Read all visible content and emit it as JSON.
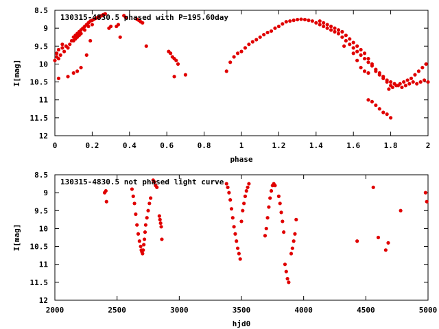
{
  "chart_data": [
    {
      "type": "scatter",
      "title": "130315-4830.5 phased with P=195.60day",
      "xlabel": "phase",
      "ylabel": "I[mag]",
      "xlim": [
        0,
        2
      ],
      "ylim": [
        8.5,
        12
      ],
      "y_inverted": true,
      "xticks": [
        "0",
        "0.2",
        "0.4",
        "0.6",
        "0.8",
        "1",
        "1.2",
        "1.4",
        "1.6",
        "1.8",
        "2"
      ],
      "yticks": [
        "8.5",
        "9",
        "9.5",
        "10",
        "10.5",
        "11",
        "11.5",
        "12"
      ],
      "color": "#e00000",
      "points": [
        [
          0.0,
          9.9
        ],
        [
          0.01,
          9.8
        ],
        [
          0.01,
          9.7
        ],
        [
          0.02,
          9.6
        ],
        [
          0.02,
          9.85
        ],
        [
          0.03,
          9.75
        ],
        [
          0.04,
          9.55
        ],
        [
          0.04,
          9.45
        ],
        [
          0.05,
          9.65
        ],
        [
          0.06,
          9.5
        ],
        [
          0.07,
          9.55
        ],
        [
          0.08,
          9.45
        ],
        [
          0.09,
          9.35
        ],
        [
          0.1,
          9.25
        ],
        [
          0.11,
          9.2
        ],
        [
          0.12,
          9.15
        ],
        [
          0.13,
          9.1
        ],
        [
          0.14,
          9.05
        ],
        [
          0.15,
          9.0
        ],
        [
          0.16,
          8.95
        ],
        [
          0.17,
          8.9
        ],
        [
          0.18,
          8.85
        ],
        [
          0.19,
          8.8
        ],
        [
          0.2,
          8.78
        ],
        [
          0.21,
          8.75
        ],
        [
          0.22,
          8.72
        ],
        [
          0.23,
          8.7
        ],
        [
          0.24,
          8.68
        ],
        [
          0.25,
          8.65
        ],
        [
          0.26,
          8.62
        ],
        [
          0.27,
          8.6
        ],
        [
          0.1,
          9.35
        ],
        [
          0.11,
          9.3
        ],
        [
          0.12,
          9.25
        ],
        [
          0.13,
          9.2
        ],
        [
          0.14,
          9.15
        ],
        [
          0.16,
          9.05
        ],
        [
          0.18,
          8.95
        ],
        [
          0.2,
          8.9
        ],
        [
          0.02,
          10.4
        ],
        [
          0.07,
          10.35
        ],
        [
          0.1,
          10.25
        ],
        [
          0.12,
          10.2
        ],
        [
          0.14,
          10.1
        ],
        [
          0.17,
          9.75
        ],
        [
          0.19,
          9.35
        ],
        [
          0.29,
          9.0
        ],
        [
          0.3,
          8.95
        ],
        [
          0.33,
          8.95
        ],
        [
          0.34,
          8.9
        ],
        [
          0.35,
          9.25
        ],
        [
          0.37,
          8.65
        ],
        [
          0.38,
          8.7
        ],
        [
          0.44,
          8.75
        ],
        [
          0.45,
          8.78
        ],
        [
          0.46,
          8.82
        ],
        [
          0.47,
          8.85
        ],
        [
          0.49,
          9.5
        ],
        [
          0.61,
          9.65
        ],
        [
          0.62,
          9.7
        ],
        [
          0.63,
          9.8
        ],
        [
          0.64,
          9.85
        ],
        [
          0.65,
          9.9
        ],
        [
          0.66,
          10.0
        ],
        [
          0.64,
          10.35
        ],
        [
          0.7,
          10.3
        ],
        [
          0.92,
          10.2
        ],
        [
          0.94,
          9.95
        ],
        [
          0.96,
          9.8
        ],
        [
          0.98,
          9.7
        ],
        [
          1.0,
          9.65
        ],
        [
          1.02,
          9.55
        ],
        [
          1.04,
          9.45
        ],
        [
          1.06,
          9.38
        ],
        [
          1.08,
          9.32
        ],
        [
          1.1,
          9.25
        ],
        [
          1.12,
          9.18
        ],
        [
          1.14,
          9.12
        ],
        [
          1.16,
          9.08
        ],
        [
          1.18,
          9.0
        ],
        [
          1.2,
          8.95
        ],
        [
          1.22,
          8.88
        ],
        [
          1.24,
          8.82
        ],
        [
          1.26,
          8.8
        ],
        [
          1.28,
          8.78
        ],
        [
          1.3,
          8.76
        ],
        [
          1.32,
          8.75
        ],
        [
          1.34,
          8.76
        ],
        [
          1.36,
          8.78
        ],
        [
          1.38,
          8.8
        ],
        [
          1.4,
          8.85
        ],
        [
          1.42,
          8.9
        ],
        [
          1.44,
          8.95
        ],
        [
          1.46,
          9.0
        ],
        [
          1.48,
          9.05
        ],
        [
          1.5,
          9.1
        ],
        [
          1.52,
          9.15
        ],
        [
          1.54,
          9.25
        ],
        [
          1.56,
          9.35
        ],
        [
          1.58,
          9.45
        ],
        [
          1.6,
          9.55
        ],
        [
          1.62,
          9.65
        ],
        [
          1.64,
          9.75
        ],
        [
          1.66,
          9.85
        ],
        [
          1.68,
          9.95
        ],
        [
          1.7,
          10.05
        ],
        [
          1.72,
          10.15
        ],
        [
          1.74,
          10.25
        ],
        [
          1.76,
          10.35
        ],
        [
          1.78,
          10.45
        ],
        [
          1.8,
          10.5
        ],
        [
          1.42,
          8.8
        ],
        [
          1.44,
          8.85
        ],
        [
          1.46,
          8.9
        ],
        [
          1.48,
          8.95
        ],
        [
          1.5,
          9.0
        ],
        [
          1.52,
          9.05
        ],
        [
          1.54,
          9.1
        ],
        [
          1.56,
          9.2
        ],
        [
          1.58,
          9.3
        ],
        [
          1.6,
          9.4
        ],
        [
          1.62,
          9.5
        ],
        [
          1.64,
          9.6
        ],
        [
          1.66,
          9.7
        ],
        [
          1.68,
          9.85
        ],
        [
          1.7,
          10.0
        ],
        [
          1.72,
          10.2
        ],
        [
          1.74,
          10.3
        ],
        [
          1.76,
          10.4
        ],
        [
          1.78,
          10.5
        ],
        [
          1.8,
          10.6
        ],
        [
          1.55,
          9.5
        ],
        [
          1.6,
          9.7
        ],
        [
          1.62,
          9.9
        ],
        [
          1.64,
          10.1
        ],
        [
          1.66,
          10.2
        ],
        [
          1.68,
          10.25
        ],
        [
          1.68,
          11.0
        ],
        [
          1.7,
          11.05
        ],
        [
          1.72,
          11.15
        ],
        [
          1.74,
          11.25
        ],
        [
          1.76,
          11.35
        ],
        [
          1.78,
          11.4
        ],
        [
          1.8,
          11.5
        ],
        [
          1.79,
          10.7
        ],
        [
          1.81,
          10.65
        ],
        [
          1.83,
          10.6
        ],
        [
          1.85,
          10.55
        ],
        [
          1.87,
          10.5
        ],
        [
          1.89,
          10.45
        ],
        [
          1.91,
          10.4
        ],
        [
          1.93,
          10.3
        ],
        [
          1.95,
          10.2
        ],
        [
          1.97,
          10.1
        ],
        [
          1.99,
          10.0
        ],
        [
          1.82,
          10.55
        ],
        [
          1.84,
          10.6
        ],
        [
          1.86,
          10.65
        ],
        [
          1.88,
          10.6
        ],
        [
          1.9,
          10.55
        ],
        [
          1.92,
          10.5
        ],
        [
          1.94,
          10.55
        ],
        [
          1.96,
          10.5
        ],
        [
          1.98,
          10.45
        ],
        [
          2.0,
          10.5
        ]
      ]
    },
    {
      "type": "scatter",
      "title": "130315-4830.5 not phased light curve",
      "xlabel": "hjd0",
      "ylabel": "I[mag]",
      "xlim": [
        2000,
        5000
      ],
      "ylim": [
        8.5,
        12
      ],
      "y_inverted": true,
      "xticks": [
        "2000",
        "2500",
        "3000",
        "3500",
        "4000",
        "4500",
        "5000"
      ],
      "yticks": [
        "8.5",
        "9",
        "9.5",
        "10",
        "10.5",
        "11",
        "11.5",
        "12"
      ],
      "color": "#e00000",
      "points": [
        [
          2400,
          9.0
        ],
        [
          2410,
          8.95
        ],
        [
          2415,
          9.25
        ],
        [
          2620,
          8.9
        ],
        [
          2630,
          9.1
        ],
        [
          2640,
          9.3
        ],
        [
          2650,
          9.6
        ],
        [
          2660,
          9.9
        ],
        [
          2670,
          10.15
        ],
        [
          2680,
          10.35
        ],
        [
          2690,
          10.5
        ],
        [
          2695,
          10.6
        ],
        [
          2700,
          10.65
        ],
        [
          2705,
          10.7
        ],
        [
          2710,
          10.6
        ],
        [
          2715,
          10.45
        ],
        [
          2720,
          10.3
        ],
        [
          2725,
          10.1
        ],
        [
          2730,
          9.9
        ],
        [
          2740,
          9.7
        ],
        [
          2750,
          9.5
        ],
        [
          2760,
          9.3
        ],
        [
          2770,
          9.15
        ],
        [
          2790,
          8.65
        ],
        [
          2800,
          8.7
        ],
        [
          2810,
          8.8
        ],
        [
          2820,
          8.85
        ],
        [
          2840,
          9.65
        ],
        [
          2845,
          9.75
        ],
        [
          2850,
          9.85
        ],
        [
          2855,
          9.95
        ],
        [
          2860,
          10.3
        ],
        [
          3380,
          8.75
        ],
        [
          3390,
          8.85
        ],
        [
          3400,
          9.0
        ],
        [
          3410,
          9.2
        ],
        [
          3420,
          9.45
        ],
        [
          3430,
          9.7
        ],
        [
          3440,
          9.95
        ],
        [
          3450,
          10.15
        ],
        [
          3460,
          10.35
        ],
        [
          3470,
          10.55
        ],
        [
          3480,
          10.7
        ],
        [
          3490,
          10.85
        ],
        [
          3500,
          9.8
        ],
        [
          3510,
          9.5
        ],
        [
          3520,
          9.3
        ],
        [
          3530,
          9.1
        ],
        [
          3540,
          8.95
        ],
        [
          3550,
          8.85
        ],
        [
          3560,
          8.75
        ],
        [
          3690,
          10.2
        ],
        [
          3700,
          10.0
        ],
        [
          3710,
          9.7
        ],
        [
          3720,
          9.4
        ],
        [
          3730,
          9.15
        ],
        [
          3740,
          8.95
        ],
        [
          3750,
          8.8
        ],
        [
          3760,
          8.75
        ],
        [
          3770,
          8.8
        ],
        [
          3800,
          9.1
        ],
        [
          3810,
          9.3
        ],
        [
          3820,
          9.55
        ],
        [
          3830,
          9.8
        ],
        [
          3840,
          10.1
        ],
        [
          3850,
          11.0
        ],
        [
          3860,
          11.2
        ],
        [
          3870,
          11.4
        ],
        [
          3880,
          11.5
        ],
        [
          3900,
          10.7
        ],
        [
          3910,
          10.55
        ],
        [
          3920,
          10.35
        ],
        [
          3930,
          10.15
        ],
        [
          3940,
          9.75
        ],
        [
          4430,
          10.35
        ],
        [
          4560,
          8.85
        ],
        [
          4600,
          10.25
        ],
        [
          4660,
          10.6
        ],
        [
          4680,
          10.4
        ],
        [
          4780,
          9.5
        ],
        [
          4980,
          9.0
        ],
        [
          4990,
          9.25
        ]
      ]
    }
  ]
}
